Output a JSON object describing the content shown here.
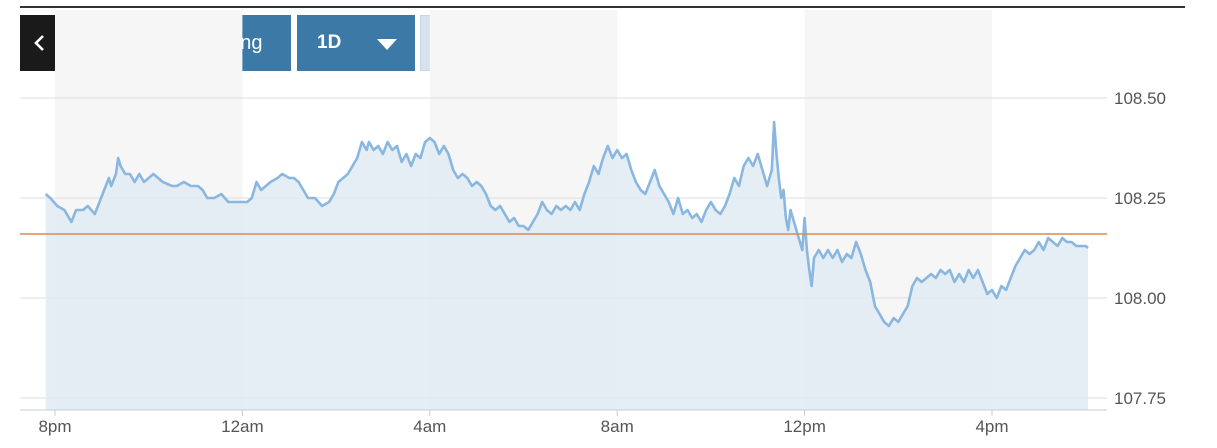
{
  "toolbar": {
    "back_icon": "chevron-left-icon",
    "advanced_label": "Advanced Charting",
    "period_label": "1D",
    "period_icon": "caret-down-icon",
    "dollar_label": "$",
    "percent_label": "%",
    "active_mode": "$"
  },
  "colors": {
    "line": "#8ab7e0",
    "area": "#e1ebf2",
    "reference_line": "#e2874e",
    "button": "#3c79a6",
    "back_button": "#1a1a1a"
  },
  "chart_data": {
    "type": "area",
    "ylim": [
      107.75,
      108.5
    ],
    "y_ticks": [
      {
        "value": 107.75,
        "label": "107.75"
      },
      {
        "value": 108.0,
        "label": "108.00"
      },
      {
        "value": 108.25,
        "label": "108.25"
      },
      {
        "value": 108.5,
        "label": "108.50"
      }
    ],
    "xlim": [
      -0.1,
      22.4
    ],
    "x_ticks": [
      {
        "value": 0,
        "label": "8pm"
      },
      {
        "value": 4,
        "label": "12am"
      },
      {
        "value": 8,
        "label": "4am"
      },
      {
        "value": 12,
        "label": "8am"
      },
      {
        "value": 16,
        "label": "12pm"
      },
      {
        "value": 20,
        "label": "4pm"
      }
    ],
    "reference_value": 108.16,
    "grid": true,
    "legend": "none",
    "points": [
      [
        -0.2,
        108.26
      ],
      [
        -0.1,
        108.25
      ],
      [
        0.05,
        108.23
      ],
      [
        0.2,
        108.22
      ],
      [
        0.3,
        108.2
      ],
      [
        0.35,
        108.19
      ],
      [
        0.45,
        108.22
      ],
      [
        0.6,
        108.22
      ],
      [
        0.7,
        108.23
      ],
      [
        0.85,
        108.21
      ],
      [
        0.95,
        108.24
      ],
      [
        1.05,
        108.27
      ],
      [
        1.15,
        108.3
      ],
      [
        1.2,
        108.28
      ],
      [
        1.3,
        108.31
      ],
      [
        1.35,
        108.35
      ],
      [
        1.4,
        108.33
      ],
      [
        1.5,
        108.31
      ],
      [
        1.6,
        108.31
      ],
      [
        1.7,
        108.29
      ],
      [
        1.8,
        108.31
      ],
      [
        1.9,
        108.29
      ],
      [
        2.0,
        108.3
      ],
      [
        2.1,
        108.31
      ],
      [
        2.2,
        108.3
      ],
      [
        2.3,
        108.29
      ],
      [
        2.5,
        108.28
      ],
      [
        2.6,
        108.28
      ],
      [
        2.75,
        108.29
      ],
      [
        2.9,
        108.28
      ],
      [
        3.05,
        108.28
      ],
      [
        3.15,
        108.27
      ],
      [
        3.25,
        108.25
      ],
      [
        3.4,
        108.25
      ],
      [
        3.55,
        108.26
      ],
      [
        3.7,
        108.24
      ],
      [
        3.85,
        108.24
      ],
      [
        4.0,
        108.24
      ],
      [
        4.1,
        108.24
      ],
      [
        4.2,
        108.25
      ],
      [
        4.3,
        108.29
      ],
      [
        4.4,
        108.27
      ],
      [
        4.5,
        108.28
      ],
      [
        4.6,
        108.29
      ],
      [
        4.75,
        108.3
      ],
      [
        4.85,
        108.31
      ],
      [
        5.0,
        108.3
      ],
      [
        5.1,
        108.3
      ],
      [
        5.2,
        108.29
      ],
      [
        5.3,
        108.27
      ],
      [
        5.4,
        108.25
      ],
      [
        5.55,
        108.25
      ],
      [
        5.7,
        108.23
      ],
      [
        5.85,
        108.24
      ],
      [
        5.95,
        108.26
      ],
      [
        6.05,
        108.29
      ],
      [
        6.15,
        108.3
      ],
      [
        6.25,
        108.31
      ],
      [
        6.35,
        108.33
      ],
      [
        6.45,
        108.35
      ],
      [
        6.55,
        108.39
      ],
      [
        6.65,
        108.37
      ],
      [
        6.7,
        108.39
      ],
      [
        6.8,
        108.37
      ],
      [
        6.9,
        108.38
      ],
      [
        7.0,
        108.36
      ],
      [
        7.1,
        108.39
      ],
      [
        7.2,
        108.37
      ],
      [
        7.3,
        108.38
      ],
      [
        7.4,
        108.34
      ],
      [
        7.5,
        108.36
      ],
      [
        7.6,
        108.33
      ],
      [
        7.7,
        108.36
      ],
      [
        7.8,
        108.35
      ],
      [
        7.9,
        108.39
      ],
      [
        8.0,
        108.4
      ],
      [
        8.1,
        108.39
      ],
      [
        8.2,
        108.36
      ],
      [
        8.3,
        108.38
      ],
      [
        8.4,
        108.36
      ],
      [
        8.5,
        108.32
      ],
      [
        8.6,
        108.3
      ],
      [
        8.7,
        108.31
      ],
      [
        8.8,
        108.3
      ],
      [
        8.9,
        108.28
      ],
      [
        9.0,
        108.29
      ],
      [
        9.1,
        108.28
      ],
      [
        9.2,
        108.26
      ],
      [
        9.3,
        108.23
      ],
      [
        9.4,
        108.22
      ],
      [
        9.5,
        108.23
      ],
      [
        9.6,
        108.21
      ],
      [
        9.7,
        108.19
      ],
      [
        9.8,
        108.2
      ],
      [
        9.9,
        108.18
      ],
      [
        10.0,
        108.18
      ],
      [
        10.1,
        108.17
      ],
      [
        10.2,
        108.19
      ],
      [
        10.3,
        108.21
      ],
      [
        10.4,
        108.24
      ],
      [
        10.5,
        108.22
      ],
      [
        10.6,
        108.21
      ],
      [
        10.7,
        108.23
      ],
      [
        10.8,
        108.22
      ],
      [
        10.9,
        108.23
      ],
      [
        11.0,
        108.22
      ],
      [
        11.1,
        108.24
      ],
      [
        11.2,
        108.22
      ],
      [
        11.3,
        108.26
      ],
      [
        11.4,
        108.29
      ],
      [
        11.5,
        108.33
      ],
      [
        11.6,
        108.31
      ],
      [
        11.7,
        108.35
      ],
      [
        11.8,
        108.38
      ],
      [
        11.9,
        108.35
      ],
      [
        12.0,
        108.37
      ],
      [
        12.1,
        108.35
      ],
      [
        12.2,
        108.36
      ],
      [
        12.3,
        108.32
      ],
      [
        12.4,
        108.29
      ],
      [
        12.5,
        108.27
      ],
      [
        12.6,
        108.26
      ],
      [
        12.7,
        108.29
      ],
      [
        12.8,
        108.32
      ],
      [
        12.9,
        108.28
      ],
      [
        13.0,
        108.26
      ],
      [
        13.1,
        108.24
      ],
      [
        13.2,
        108.21
      ],
      [
        13.3,
        108.25
      ],
      [
        13.4,
        108.21
      ],
      [
        13.5,
        108.22
      ],
      [
        13.6,
        108.2
      ],
      [
        13.7,
        108.21
      ],
      [
        13.8,
        108.19
      ],
      [
        13.9,
        108.22
      ],
      [
        14.0,
        108.24
      ],
      [
        14.1,
        108.22
      ],
      [
        14.2,
        108.21
      ],
      [
        14.3,
        108.23
      ],
      [
        14.4,
        108.26
      ],
      [
        14.5,
        108.3
      ],
      [
        14.6,
        108.28
      ],
      [
        14.7,
        108.33
      ],
      [
        14.8,
        108.35
      ],
      [
        14.9,
        108.33
      ],
      [
        15.0,
        108.36
      ],
      [
        15.1,
        108.32
      ],
      [
        15.2,
        108.28
      ],
      [
        15.3,
        108.32
      ],
      [
        15.35,
        108.44
      ],
      [
        15.4,
        108.36
      ],
      [
        15.45,
        108.3
      ],
      [
        15.5,
        108.25
      ],
      [
        15.55,
        108.27
      ],
      [
        15.6,
        108.2
      ],
      [
        15.65,
        108.17
      ],
      [
        15.7,
        108.22
      ],
      [
        15.8,
        108.18
      ],
      [
        15.9,
        108.14
      ],
      [
        15.95,
        108.12
      ],
      [
        16.0,
        108.2
      ],
      [
        16.05,
        108.12
      ],
      [
        16.1,
        108.07
      ],
      [
        16.15,
        108.03
      ],
      [
        16.2,
        108.1
      ],
      [
        16.3,
        108.12
      ],
      [
        16.4,
        108.1
      ],
      [
        16.5,
        108.12
      ],
      [
        16.6,
        108.1
      ],
      [
        16.7,
        108.12
      ],
      [
        16.8,
        108.09
      ],
      [
        16.9,
        108.11
      ],
      [
        17.0,
        108.1
      ],
      [
        17.1,
        108.14
      ],
      [
        17.2,
        108.11
      ],
      [
        17.3,
        108.07
      ],
      [
        17.4,
        108.04
      ],
      [
        17.5,
        107.98
      ],
      [
        17.6,
        107.96
      ],
      [
        17.7,
        107.94
      ],
      [
        17.8,
        107.93
      ],
      [
        17.9,
        107.95
      ],
      [
        18.0,
        107.94
      ],
      [
        18.1,
        107.96
      ],
      [
        18.2,
        107.98
      ],
      [
        18.3,
        108.03
      ],
      [
        18.4,
        108.05
      ],
      [
        18.5,
        108.04
      ],
      [
        18.6,
        108.05
      ],
      [
        18.7,
        108.06
      ],
      [
        18.8,
        108.05
      ],
      [
        18.9,
        108.07
      ],
      [
        19.0,
        108.06
      ],
      [
        19.1,
        108.07
      ],
      [
        19.2,
        108.04
      ],
      [
        19.3,
        108.06
      ],
      [
        19.4,
        108.04
      ],
      [
        19.5,
        108.07
      ],
      [
        19.6,
        108.05
      ],
      [
        19.7,
        108.07
      ],
      [
        19.8,
        108.04
      ],
      [
        19.9,
        108.01
      ],
      [
        20.0,
        108.02
      ],
      [
        20.1,
        108.0
      ],
      [
        20.2,
        108.03
      ],
      [
        20.3,
        108.02
      ],
      [
        20.4,
        108.05
      ],
      [
        20.5,
        108.08
      ],
      [
        20.6,
        108.1
      ],
      [
        20.7,
        108.12
      ],
      [
        20.8,
        108.11
      ],
      [
        20.9,
        108.12
      ],
      [
        21.0,
        108.14
      ],
      [
        21.1,
        108.12
      ],
      [
        21.2,
        108.15
      ],
      [
        21.3,
        108.14
      ],
      [
        21.4,
        108.13
      ],
      [
        21.5,
        108.15
      ],
      [
        21.6,
        108.14
      ],
      [
        21.7,
        108.14
      ],
      [
        21.8,
        108.13
      ],
      [
        21.9,
        108.13
      ],
      [
        22.0,
        108.13
      ],
      [
        22.05,
        108.125
      ]
    ]
  }
}
